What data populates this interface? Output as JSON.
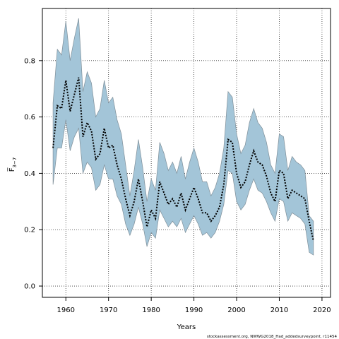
{
  "chart_data": {
    "type": "line",
    "title": "",
    "xlabel": "Years",
    "ylabel": "F̅",
    "ylabel_subscript": "3−7",
    "xlim": [
      1954.5,
      2022
    ],
    "ylim": [
      -0.04,
      0.985
    ],
    "xticks": [
      1960,
      1970,
      1980,
      1990,
      2000,
      2010,
      2020
    ],
    "yticks": [
      0.0,
      0.2,
      0.4,
      0.6,
      0.8
    ],
    "ytick_labels": [
      "0.0",
      "0.2",
      "0.4",
      "0.6",
      "0.8"
    ],
    "grid": true,
    "legend": "none",
    "band_color": "#a3c5d8",
    "band_edge_color": "#7f8f99",
    "line_color": "#000000",
    "x": [
      1957,
      1958,
      1959,
      1960,
      1961,
      1962,
      1963,
      1964,
      1965,
      1966,
      1967,
      1968,
      1969,
      1970,
      1971,
      1972,
      1973,
      1974,
      1975,
      1976,
      1977,
      1978,
      1979,
      1980,
      1981,
      1982,
      1983,
      1984,
      1985,
      1986,
      1987,
      1988,
      1989,
      1990,
      1991,
      1992,
      1993,
      1994,
      1995,
      1996,
      1997,
      1998,
      1999,
      2000,
      2001,
      2002,
      2003,
      2004,
      2005,
      2006,
      2007,
      2008,
      2009,
      2010,
      2011,
      2012,
      2013,
      2014,
      2015,
      2016,
      2017,
      2018
    ],
    "series": [
      {
        "values": [
          0.49,
          0.64,
          0.63,
          0.73,
          0.62,
          0.68,
          0.74,
          0.53,
          0.58,
          0.55,
          0.45,
          0.47,
          0.56,
          0.49,
          0.5,
          0.43,
          0.38,
          0.31,
          0.25,
          0.3,
          0.38,
          0.3,
          0.21,
          0.27,
          0.24,
          0.37,
          0.33,
          0.29,
          0.31,
          0.28,
          0.33,
          0.27,
          0.31,
          0.35,
          0.31,
          0.26,
          0.26,
          0.23,
          0.25,
          0.28,
          0.36,
          0.52,
          0.51,
          0.4,
          0.35,
          0.37,
          0.43,
          0.48,
          0.44,
          0.43,
          0.39,
          0.33,
          0.3,
          0.41,
          0.4,
          0.31,
          0.34,
          0.33,
          0.32,
          0.31,
          0.23,
          0.16
        ],
        "lower": [
          0.36,
          0.49,
          0.49,
          0.59,
          0.48,
          0.53,
          0.56,
          0.4,
          0.44,
          0.42,
          0.34,
          0.36,
          0.43,
          0.38,
          0.38,
          0.32,
          0.29,
          0.22,
          0.18,
          0.22,
          0.28,
          0.22,
          0.14,
          0.19,
          0.17,
          0.27,
          0.24,
          0.21,
          0.23,
          0.21,
          0.24,
          0.19,
          0.22,
          0.25,
          0.22,
          0.18,
          0.19,
          0.17,
          0.19,
          0.23,
          0.29,
          0.41,
          0.4,
          0.3,
          0.27,
          0.29,
          0.34,
          0.38,
          0.34,
          0.33,
          0.3,
          0.26,
          0.23,
          0.31,
          0.3,
          0.23,
          0.26,
          0.25,
          0.24,
          0.22,
          0.12,
          0.11
        ],
        "upper": [
          0.65,
          0.84,
          0.82,
          0.94,
          0.8,
          0.88,
          0.95,
          0.69,
          0.76,
          0.72,
          0.6,
          0.63,
          0.73,
          0.65,
          0.67,
          0.59,
          0.54,
          0.43,
          0.32,
          0.41,
          0.52,
          0.42,
          0.3,
          0.38,
          0.34,
          0.51,
          0.47,
          0.41,
          0.44,
          0.4,
          0.46,
          0.38,
          0.44,
          0.49,
          0.44,
          0.37,
          0.37,
          0.32,
          0.35,
          0.4,
          0.49,
          0.69,
          0.67,
          0.54,
          0.47,
          0.5,
          0.58,
          0.63,
          0.58,
          0.56,
          0.51,
          0.43,
          0.4,
          0.54,
          0.53,
          0.41,
          0.46,
          0.44,
          0.43,
          0.41,
          0.25,
          0.23
        ]
      }
    ],
    "caption": "stockassessment.org, NWWG2018_Had_addedsurveypoint, r11454"
  }
}
